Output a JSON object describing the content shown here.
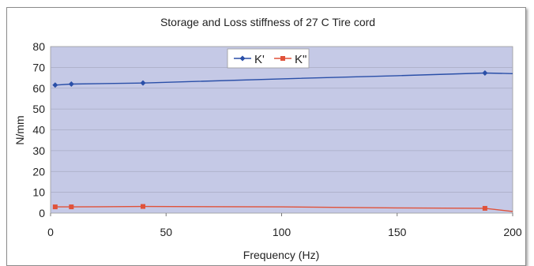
{
  "chart_data": {
    "type": "line",
    "title": "Storage and Loss stiffness of 27 C Tire cord",
    "xlabel": "Frequency (Hz)",
    "ylabel": "N/mm",
    "xlim": [
      0,
      200
    ],
    "ylim": [
      0,
      80
    ],
    "x_ticks": [
      "0",
      "50",
      "100",
      "150",
      "200"
    ],
    "y_ticks": [
      "0",
      "10",
      "20",
      "30",
      "40",
      "50",
      "60",
      "70",
      "80"
    ],
    "grid": true,
    "legend_position": "top-center",
    "plot_background": "#c5c9e6",
    "series": [
      {
        "name": "K'",
        "color": "#2a4fa8",
        "points": [
          {
            "x": 2,
            "y": 61.5,
            "marker": true
          },
          {
            "x": 9,
            "y": 62,
            "marker": true
          },
          {
            "x": 40,
            "y": 62.5,
            "marker": true
          },
          {
            "x": 100,
            "y": 64.5,
            "marker": false
          },
          {
            "x": 150,
            "y": 66,
            "marker": false
          },
          {
            "x": 188,
            "y": 67.3,
            "marker": true
          },
          {
            "x": 200,
            "y": 67,
            "marker": false
          }
        ]
      },
      {
        "name": "K\"",
        "color": "#e0523a",
        "points": [
          {
            "x": 2,
            "y": 3,
            "marker": true
          },
          {
            "x": 9,
            "y": 3,
            "marker": true
          },
          {
            "x": 40,
            "y": 3.2,
            "marker": true
          },
          {
            "x": 100,
            "y": 3,
            "marker": false
          },
          {
            "x": 150,
            "y": 2.5,
            "marker": false
          },
          {
            "x": 188,
            "y": 2.3,
            "marker": true
          },
          {
            "x": 200,
            "y": 0.8,
            "marker": false
          }
        ]
      }
    ]
  }
}
